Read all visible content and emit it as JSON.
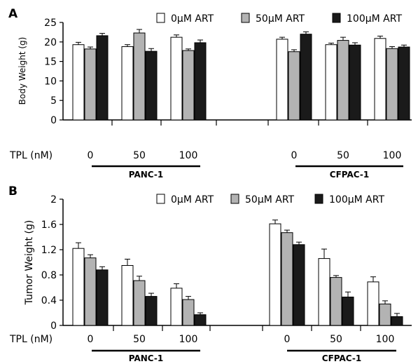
{
  "figure": {
    "panels": [
      {
        "letter": "A",
        "ylabel": "Body Weight (g)",
        "legend": [
          "0μM ART",
          "50μM ART",
          "100μM ART"
        ]
      },
      {
        "letter": "B",
        "ylabel": "Tumor Weight (g)",
        "legend": [
          "0μM ART",
          "50μM ART",
          "100μM ART"
        ]
      }
    ]
  },
  "chart_data": [
    {
      "type": "bar",
      "panel": "A",
      "title": "",
      "ylabel": "Body Weight (g)",
      "ylim": [
        0,
        25
      ],
      "yticks": [
        "0",
        "5",
        "10",
        "15",
        "20",
        "25"
      ],
      "x_prefix": "TPL (nM)",
      "categories": [
        "0",
        "50",
        "100",
        "0",
        "50",
        "100"
      ],
      "groups": [
        "PANC-1",
        "CFPAC-1"
      ],
      "series": [
        {
          "name": "0μM ART",
          "color": "#ffffff",
          "values": [
            19.3,
            18.8,
            21.2,
            20.7,
            19.3,
            20.9
          ],
          "errors": [
            0.6,
            0.5,
            0.6,
            0.5,
            0.4,
            0.6
          ]
        },
        {
          "name": "50μM ART",
          "color": "#b3b3b3",
          "values": [
            18.2,
            22.3,
            17.8,
            17.5,
            20.4,
            18.3
          ],
          "errors": [
            0.5,
            0.9,
            0.4,
            0.5,
            0.8,
            0.5
          ]
        },
        {
          "name": "100μM ART",
          "color": "#1a1a1a",
          "values": [
            21.6,
            17.6,
            19.8,
            22.0,
            19.2,
            18.7
          ],
          "errors": [
            0.6,
            0.7,
            0.7,
            0.6,
            0.6,
            0.5
          ]
        }
      ],
      "legend_position": "top-right",
      "grid": false
    },
    {
      "type": "bar",
      "panel": "B",
      "title": "",
      "ylabel": "Tumor Weight (g)",
      "ylim": [
        0,
        2
      ],
      "yticks": [
        "0",
        "0.4",
        "0.8",
        "1.2",
        "1.6",
        "2"
      ],
      "x_prefix": "TPL (nM)",
      "categories": [
        "0",
        "50",
        "100",
        "0",
        "50",
        "100"
      ],
      "groups": [
        "PANC-1",
        "CFPAC-1"
      ],
      "series": [
        {
          "name": "0μM ART",
          "color": "#ffffff",
          "values": [
            1.22,
            0.95,
            0.59,
            1.61,
            1.06,
            0.69
          ],
          "errors": [
            0.09,
            0.1,
            0.07,
            0.06,
            0.15,
            0.08
          ]
        },
        {
          "name": "50μM ART",
          "color": "#b3b3b3",
          "values": [
            1.07,
            0.71,
            0.41,
            1.47,
            0.76,
            0.34
          ],
          "errors": [
            0.05,
            0.07,
            0.05,
            0.04,
            0.03,
            0.05
          ]
        },
        {
          "name": "100μM ART",
          "color": "#1a1a1a",
          "values": [
            0.88,
            0.46,
            0.17,
            1.28,
            0.45,
            0.14
          ],
          "errors": [
            0.05,
            0.05,
            0.03,
            0.04,
            0.08,
            0.05
          ]
        }
      ],
      "legend_position": "top-right",
      "grid": false
    }
  ]
}
